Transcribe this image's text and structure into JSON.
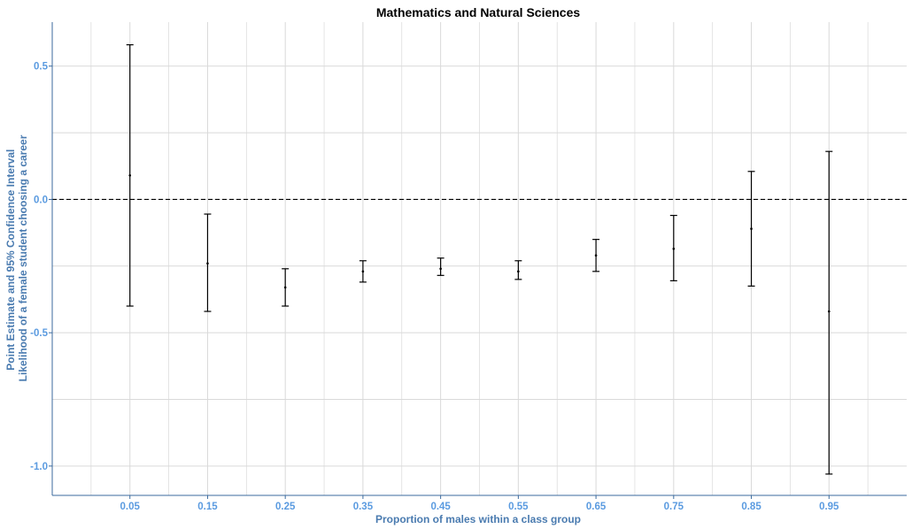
{
  "chart_data": {
    "type": "errorbar",
    "title": "Mathematics and Natural Sciences",
    "xlabel": "Proportion of males within a class group",
    "ylabel": [
      "Point Estimate and 95% Confidence Interval",
      "Likelihood of a female student choosing a career"
    ],
    "x_tick_labels": [
      "0.05",
      "0.15",
      "0.25",
      "0.35",
      "0.45",
      "0.55",
      "0.65",
      "0.75",
      "0.85",
      "0.95"
    ],
    "y_tick_labels": [
      "0.5",
      "0.0",
      "-0.5",
      "-1.0"
    ],
    "x": [
      0.05,
      0.15,
      0.25,
      0.35,
      0.45,
      0.55,
      0.65,
      0.75,
      0.85,
      0.95
    ],
    "estimate": [
      0.09,
      -0.24,
      -0.33,
      -0.27,
      -0.26,
      -0.27,
      -0.21,
      -0.185,
      -0.11,
      -0.42
    ],
    "lower": [
      -0.4,
      -0.42,
      -0.4,
      -0.31,
      -0.285,
      -0.3,
      -0.27,
      -0.305,
      -0.325,
      -1.03
    ],
    "upper": [
      0.58,
      -0.055,
      -0.26,
      -0.23,
      -0.22,
      -0.23,
      -0.15,
      -0.06,
      0.105,
      0.18
    ],
    "xlim": [
      -0.05,
      1.05
    ],
    "ylim": [
      -1.11,
      0.665
    ],
    "y_ticks": [
      0.5,
      0.0,
      -0.5,
      -1.0
    ],
    "reference_line": 0.0,
    "grid": true,
    "colors": {
      "errorbar": "#000000",
      "grid": "#d9d9d9",
      "axis": "#3b6a9e",
      "tick_label": "#5b9be0",
      "axis_title": "#4a7bb0"
    }
  }
}
